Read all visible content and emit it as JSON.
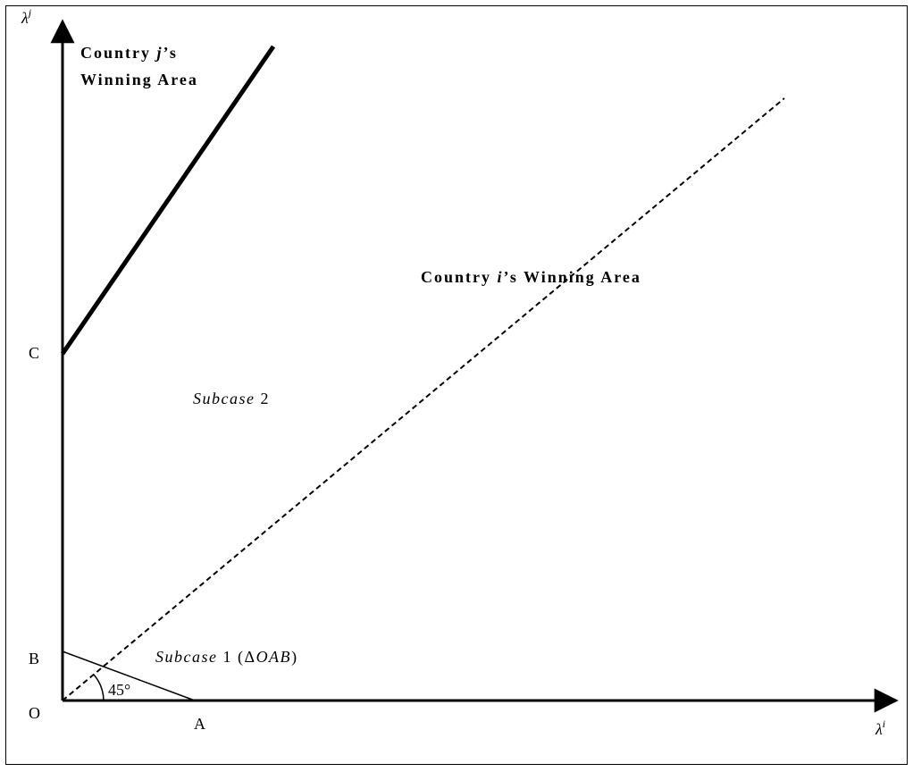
{
  "axes": {
    "y_symbol": "λ",
    "y_superscript": "j",
    "x_symbol": "λ",
    "x_superscript": "i"
  },
  "points": {
    "origin": "O",
    "a": "A",
    "b": "B",
    "c": "C"
  },
  "regions": {
    "country_j_line1_part1": "Country ",
    "country_j_line1_italic": "j",
    "country_j_line1_part2": "’s",
    "country_j_line2": "Winning Area",
    "country_i_part1": "Country ",
    "country_i_italic": "i",
    "country_i_part2": "’s Winning Area"
  },
  "subcases": {
    "subcase2_italic": "Subcase",
    "subcase2_num": " 2",
    "subcase1_italic": "Subcase",
    "subcase1_num": " 1 (",
    "subcase1_delta": "Δ",
    "subcase1_tri": "OAB",
    "subcase1_close": ")"
  },
  "angle_label": "45°"
}
